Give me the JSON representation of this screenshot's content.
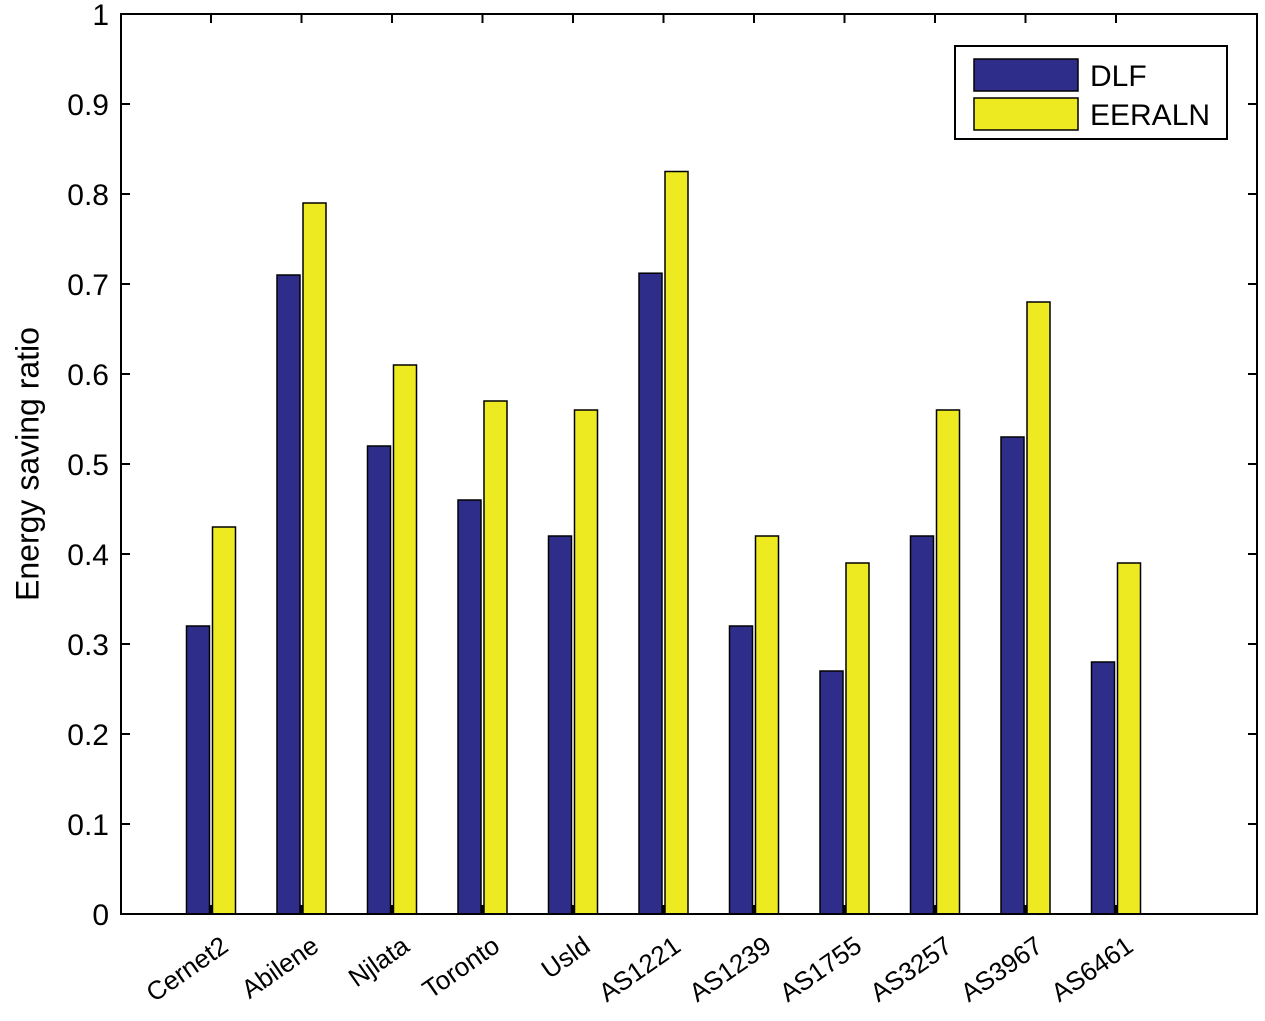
{
  "chart_data": {
    "type": "bar",
    "categories": [
      "Cernet2",
      "Abilene",
      "Njlata",
      "Toronto",
      "Usld",
      "AS1221",
      "AS1239",
      "AS1755",
      "AS3257",
      "AS3967",
      "AS6461"
    ],
    "series": [
      {
        "name": "DLF",
        "color": "#2e2e8a",
        "values": [
          0.32,
          0.71,
          0.52,
          0.46,
          0.42,
          0.712,
          0.32,
          0.27,
          0.42,
          0.53,
          0.28
        ]
      },
      {
        "name": "EERALN",
        "color": "#eeea22",
        "values": [
          0.43,
          0.79,
          0.61,
          0.57,
          0.56,
          0.825,
          0.42,
          0.39,
          0.56,
          0.68,
          0.39
        ]
      }
    ],
    "ylabel": "Energy saving ratio",
    "xlabel": "",
    "ylim": [
      0,
      1
    ],
    "yticks": [
      "0",
      "0.1",
      "0.2",
      "0.3",
      "0.4",
      "0.5",
      "0.6",
      "0.7",
      "0.8",
      "0.9",
      "1"
    ],
    "legend_position": "top-right",
    "grid": false
  }
}
